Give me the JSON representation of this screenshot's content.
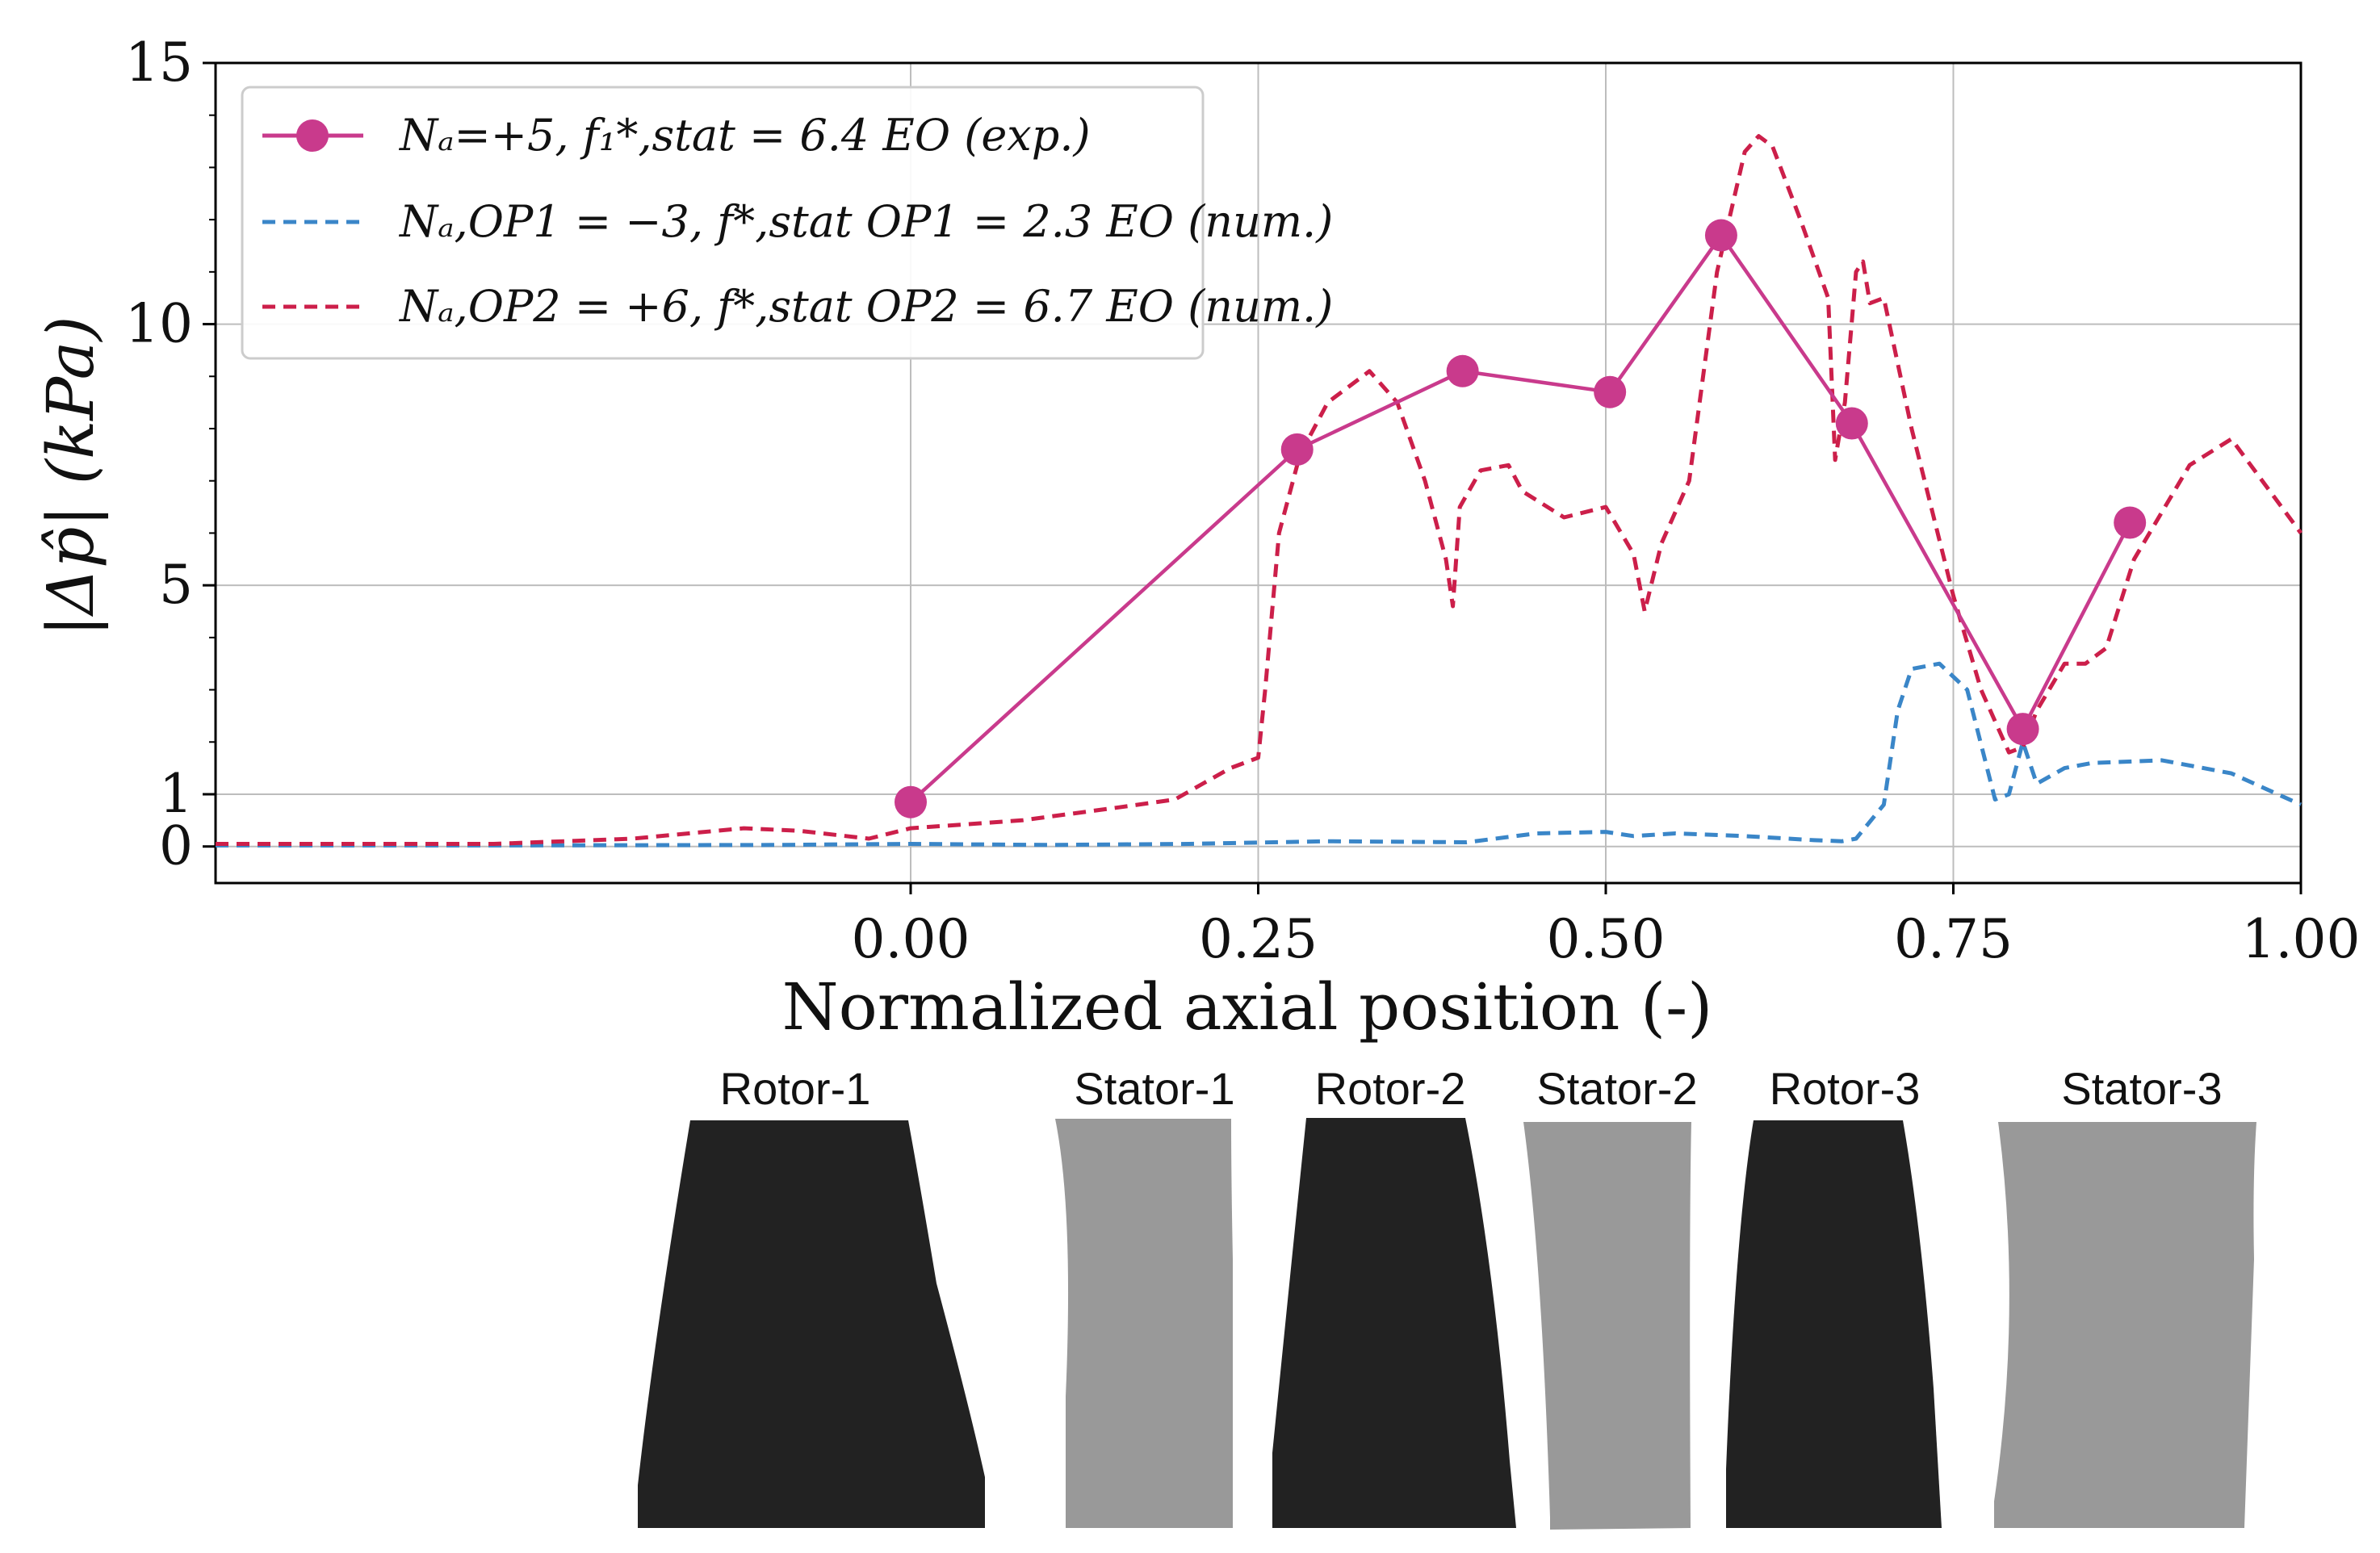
{
  "chart_data": {
    "type": "line",
    "title": "",
    "xlabel": "Normalized axial position (-)",
    "ylabel": "|Δp̂| (kPa)",
    "xlim": [
      -0.5,
      1.0
    ],
    "ylim": [
      -0.7,
      15
    ],
    "x_ticks": [
      {
        "value": 0.0,
        "label": "0.00"
      },
      {
        "value": 0.25,
        "label": "0.25"
      },
      {
        "value": 0.5,
        "label": "0.50"
      },
      {
        "value": 0.75,
        "label": "0.75"
      },
      {
        "value": 1.0,
        "label": "1.00"
      }
    ],
    "y_ticks": [
      {
        "value": 0,
        "label": "0"
      },
      {
        "value": 1,
        "label": "1"
      },
      {
        "value": 5,
        "label": "5"
      },
      {
        "value": 10,
        "label": "10"
      },
      {
        "value": 15,
        "label": "15"
      }
    ],
    "grid": true,
    "legend_position": "top-left",
    "series": [
      {
        "name": "Na=+5, f1*,stat = 6.4 EO (exp.)",
        "legend_label": "Na=+5,  f₁*,stat = 6.4 EO (exp.)",
        "color": "#c93a8c",
        "style": "solid-markers",
        "x": [
          0.0,
          0.278,
          0.397,
          0.503,
          0.583,
          0.677,
          0.8,
          0.877
        ],
        "y": [
          0.85,
          7.6,
          9.1,
          8.7,
          11.7,
          8.1,
          2.25,
          6.2
        ]
      },
      {
        "name": "Na,OP1 = -3, fOP1*,stat = 2.3 EO (num.)",
        "legend_label": "Na,OP1 = −3,  fOP1*,stat = 2.3 EO (num.)",
        "color": "#3a86c8",
        "style": "dashed",
        "x": [
          -0.5,
          -0.3,
          -0.1,
          0.0,
          0.1,
          0.2,
          0.3,
          0.4,
          0.45,
          0.5,
          0.52,
          0.55,
          0.6,
          0.65,
          0.67,
          0.68,
          0.7,
          0.71,
          0.72,
          0.74,
          0.76,
          0.78,
          0.79,
          0.8,
          0.81,
          0.83,
          0.85,
          0.9,
          0.95,
          1.0
        ],
        "y": [
          0.02,
          0.02,
          0.03,
          0.05,
          0.03,
          0.05,
          0.1,
          0.08,
          0.25,
          0.28,
          0.2,
          0.25,
          0.2,
          0.12,
          0.1,
          0.15,
          0.8,
          2.6,
          3.4,
          3.5,
          3.0,
          0.9,
          1.0,
          2.0,
          1.2,
          1.5,
          1.6,
          1.65,
          1.4,
          0.8
        ]
      },
      {
        "name": "Na,OP2 = +6, fOP2*,stat = 6.7 EO (num.)",
        "legend_label": "Na,OP2 = +6,  fOP2*,stat = 6.7 EO (num.)",
        "color": "#cc1f4a",
        "style": "dashed",
        "x": [
          -0.5,
          -0.3,
          -0.2,
          -0.12,
          -0.08,
          -0.03,
          0.0,
          0.08,
          0.15,
          0.19,
          0.21,
          0.23,
          0.25,
          0.255,
          0.265,
          0.28,
          0.3,
          0.33,
          0.35,
          0.37,
          0.385,
          0.39,
          0.395,
          0.41,
          0.43,
          0.44,
          0.47,
          0.5,
          0.52,
          0.528,
          0.54,
          0.56,
          0.58,
          0.6,
          0.61,
          0.62,
          0.64,
          0.66,
          0.665,
          0.672,
          0.68,
          0.685,
          0.69,
          0.7,
          0.72,
          0.75,
          0.77,
          0.79,
          0.8,
          0.81,
          0.83,
          0.845,
          0.86,
          0.88,
          0.92,
          0.95,
          1.0
        ],
        "y": [
          0.05,
          0.05,
          0.15,
          0.35,
          0.3,
          0.15,
          0.35,
          0.5,
          0.75,
          0.9,
          1.2,
          1.5,
          1.7,
          3.0,
          6.0,
          7.5,
          8.5,
          9.1,
          8.5,
          7.0,
          5.5,
          4.6,
          6.5,
          7.2,
          7.3,
          6.8,
          6.3,
          6.5,
          5.6,
          4.5,
          5.8,
          7.0,
          11.0,
          13.3,
          13.6,
          13.4,
          12.0,
          10.5,
          7.4,
          8.5,
          11.0,
          11.2,
          10.4,
          10.5,
          8.0,
          4.8,
          3.0,
          1.8,
          1.9,
          2.6,
          3.5,
          3.5,
          3.8,
          5.5,
          7.3,
          7.8,
          6.0
        ]
      }
    ]
  },
  "legend": {
    "exp_label": "Nₐ=+5,  f₁*,stat = 6.4 EO (exp.)",
    "op1_label": "Nₐ,OP1 = −3,  f*,stat OP1 = 2.3 EO (num.)",
    "op2_label": "Nₐ,OP2 = +6,  f*,stat OP2 = 6.7 EO (num.)"
  },
  "blades": [
    {
      "label": "Rotor-1",
      "color": "#222222"
    },
    {
      "label": "Stator-1",
      "color": "#999999"
    },
    {
      "label": "Rotor-2",
      "color": "#222222"
    },
    {
      "label": "Stator-2",
      "color": "#999999"
    },
    {
      "label": "Rotor-3",
      "color": "#222222"
    },
    {
      "label": "Stator-3",
      "color": "#999999"
    }
  ]
}
